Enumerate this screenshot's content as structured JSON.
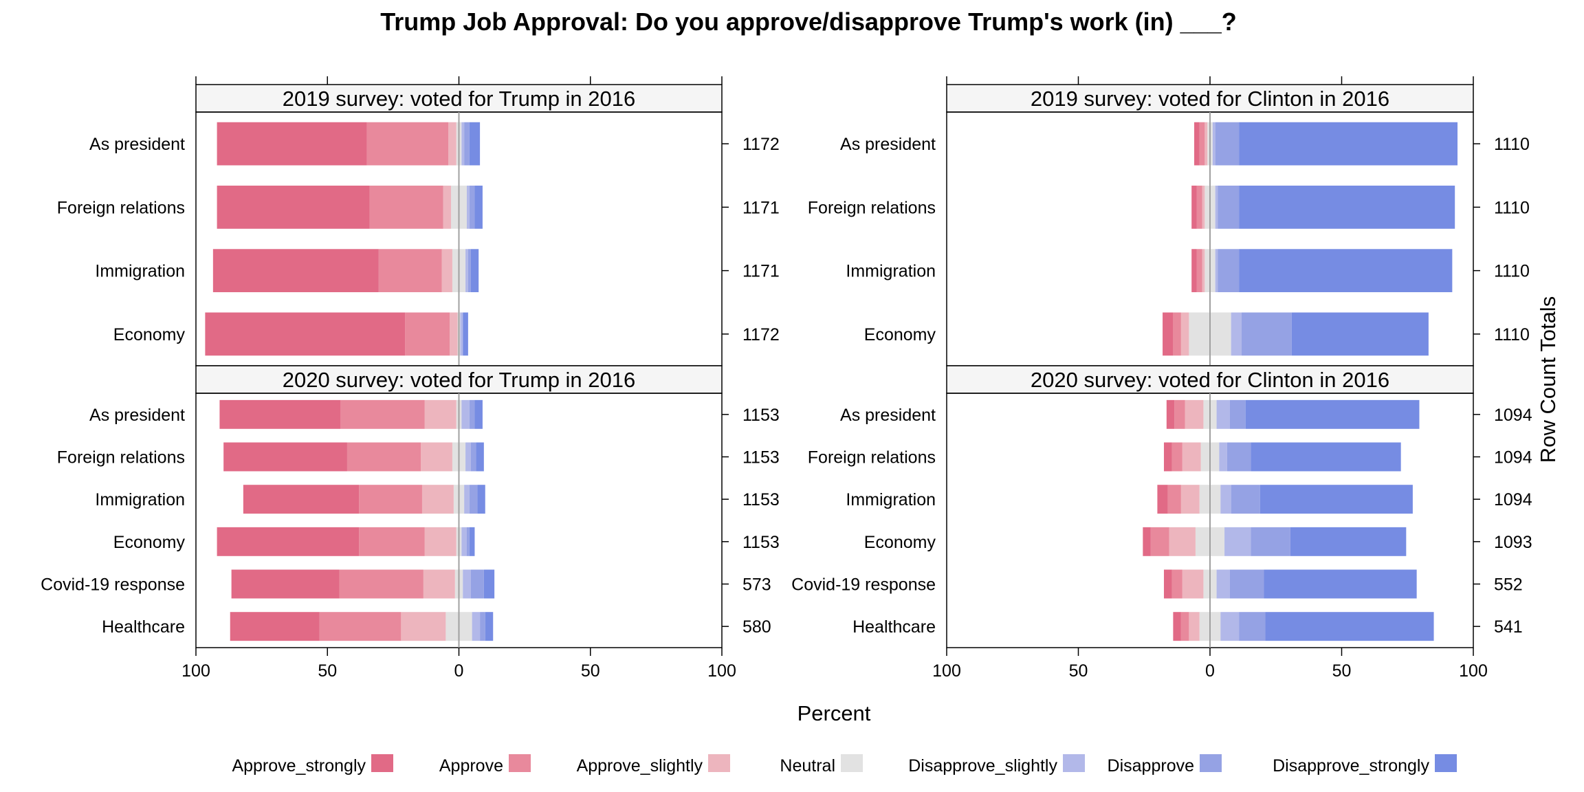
{
  "chart_data": {
    "type": "bar",
    "subtype": "diverging-stacked-likert",
    "title": "Trump Job Approval: Do you approve/disapprove Trump's work (in) ___?",
    "xlabel": "Percent",
    "right_axis_label": "Row Count Totals",
    "xlim": [
      -100,
      100
    ],
    "x_ticks": [
      -100,
      -50,
      0,
      50,
      100
    ],
    "x_tick_labels": [
      "100",
      "50",
      "0",
      "50",
      "100"
    ],
    "levels": [
      "Approve_strongly",
      "Approve",
      "Approve_slightly",
      "Neutral",
      "Disapprove_slightly",
      "Disapprove",
      "Disapprove_strongly"
    ],
    "colors": [
      "#E16A86",
      "#E8899C",
      "#EDB5BE",
      "#E2E2E2",
      "#B2B8E9",
      "#95A2E4",
      "#768CE3"
    ],
    "legend_position": "bottom",
    "panels": [
      {
        "strip": "2019 survey: voted for Trump in 2016",
        "categories": [
          "As president",
          "Foreign relations",
          "Immigration",
          "Economy"
        ],
        "totals": [
          "1172",
          "1171",
          "1171",
          "1172"
        ],
        "values": [
          [
            57,
            31,
            3,
            2,
            1,
            2,
            4
          ],
          [
            58,
            28,
            3,
            6,
            1,
            2,
            3
          ],
          [
            63,
            24,
            4,
            5,
            1,
            1,
            3
          ],
          [
            76,
            17,
            3,
            1,
            1,
            0,
            2
          ]
        ]
      },
      {
        "strip": "2019 survey: voted for Clinton in 2016",
        "categories": [
          "As president",
          "Foreign relations",
          "Immigration",
          "Economy"
        ],
        "totals": [
          "1110",
          "1110",
          "1110",
          "1110"
        ],
        "values": [
          [
            2,
            2,
            1,
            2,
            1,
            9,
            83
          ],
          [
            2,
            2,
            1,
            4,
            1,
            8,
            82
          ],
          [
            2,
            2,
            1,
            4,
            1,
            8,
            81
          ],
          [
            4,
            3,
            3,
            16,
            4,
            19,
            52
          ]
        ]
      },
      {
        "strip": "2020 survey: voted for Trump in 2016",
        "categories": [
          "As president",
          "Foreign relations",
          "Immigration",
          "Economy",
          "Covid-19 response",
          "Healthcare"
        ],
        "totals": [
          "1153",
          "1153",
          "1153",
          "1153",
          "573",
          "580"
        ],
        "values": [
          [
            46,
            32,
            12,
            2,
            3,
            2,
            3
          ],
          [
            47,
            28,
            12,
            5,
            2,
            2,
            3
          ],
          [
            44,
            24,
            12,
            4,
            2,
            3,
            3
          ],
          [
            54,
            25,
            12,
            2,
            2,
            1,
            2
          ],
          [
            41,
            32,
            12,
            3,
            3,
            5,
            4
          ],
          [
            34,
            31,
            17,
            10,
            3,
            2,
            3
          ]
        ]
      },
      {
        "strip": "2020 survey: voted for Clinton in 2016",
        "categories": [
          "As president",
          "Foreign relations",
          "Immigration",
          "Economy",
          "Covid-19 response",
          "Healthcare"
        ],
        "totals": [
          "1094",
          "1094",
          "1094",
          "1093",
          "552",
          "541"
        ],
        "values": [
          [
            3,
            4,
            7,
            5,
            5,
            6,
            66
          ],
          [
            3,
            4,
            7,
            7,
            3,
            9,
            57
          ],
          [
            4,
            5,
            7,
            8,
            4,
            11,
            58
          ],
          [
            3,
            7,
            10,
            11,
            10,
            15,
            44
          ],
          [
            3,
            4,
            8,
            5,
            5,
            13,
            58
          ],
          [
            3,
            3,
            4,
            8,
            7,
            10,
            64
          ]
        ]
      }
    ],
    "grid": false
  }
}
